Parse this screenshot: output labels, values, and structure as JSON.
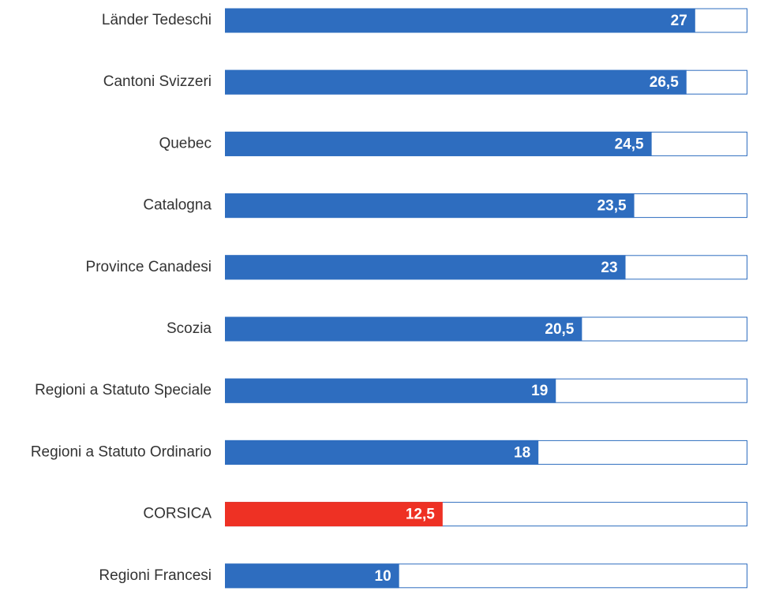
{
  "chart_data": {
    "type": "bar",
    "orientation": "horizontal",
    "categories": [
      "Länder Tedeschi",
      "Cantoni Svizzeri",
      "Quebec",
      "Catalogna",
      "Province Canadesi",
      "Scozia",
      "Regioni a Statuto Speciale",
      "Regioni a Statuto Ordinario",
      "CORSICA",
      "Regioni Francesi"
    ],
    "values": [
      27,
      26.5,
      24.5,
      23.5,
      23,
      20.5,
      19,
      18,
      12.5,
      10
    ],
    "value_labels": [
      "27",
      "26,5",
      "24,5",
      "23,5",
      "23",
      "20,5",
      "19",
      "18",
      "12,5",
      "10"
    ],
    "xlim": [
      0,
      30
    ],
    "grid": false,
    "legend": "none",
    "colors": {
      "default": "#2e6dbf",
      "highlight": "#ee3124",
      "track_border": "#2e6dbf",
      "track_fill": "#ffffff"
    },
    "highlight_categories": [
      "CORSICA"
    ]
  }
}
